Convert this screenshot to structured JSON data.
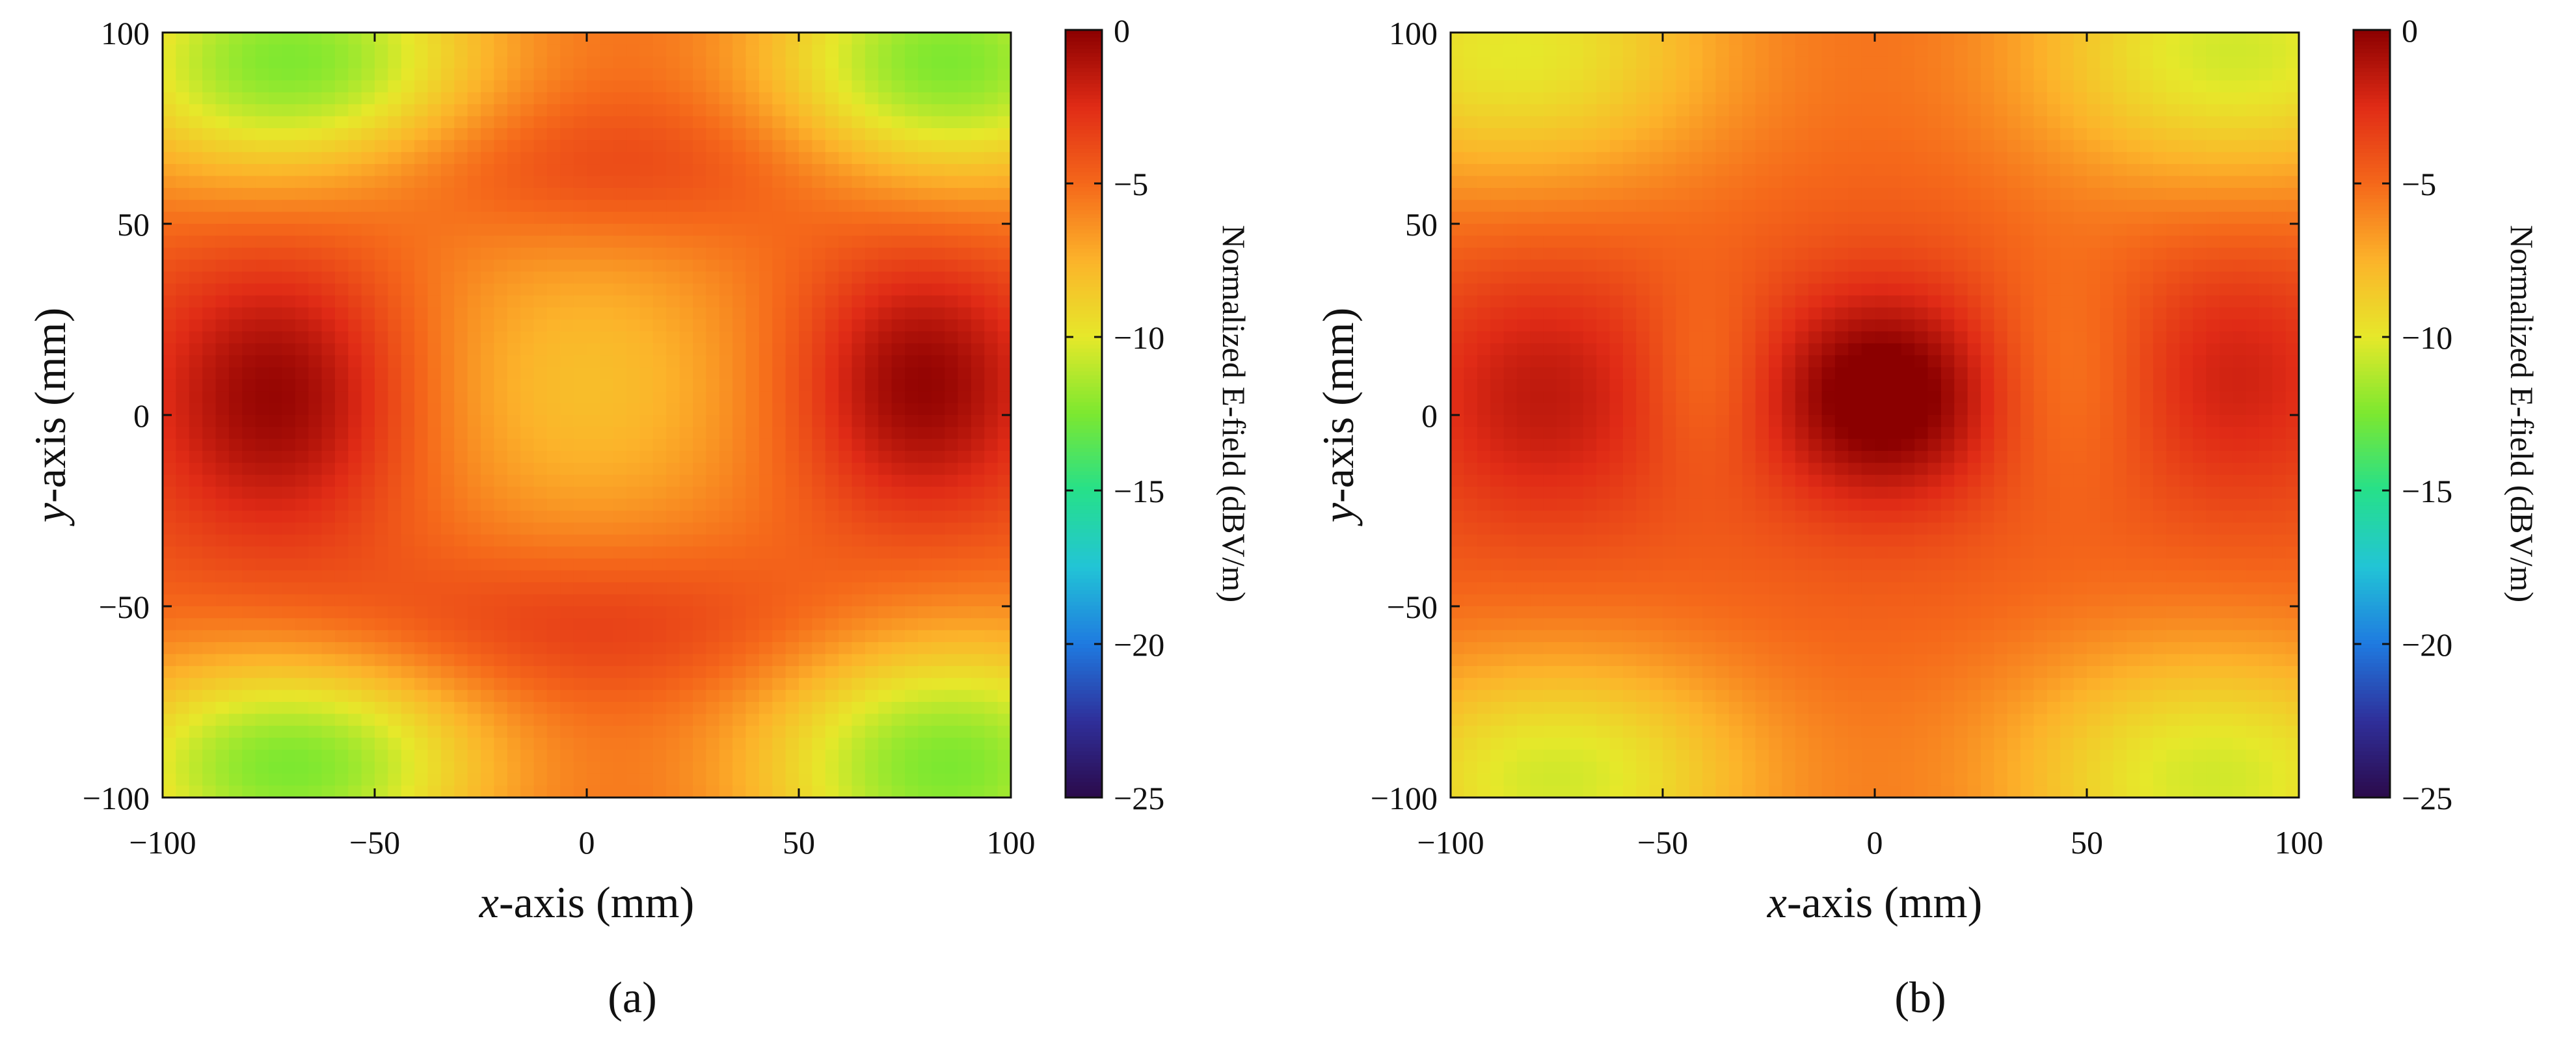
{
  "chart_data": [
    {
      "type": "heatmap",
      "panel_label": "(a)",
      "xlabel_italic": "x",
      "xlabel_rest": "-axis (mm)",
      "ylabel_italic": "y",
      "ylabel_rest": "-axis (mm)",
      "xlim": [
        -100,
        100
      ],
      "ylim": [
        -100,
        100
      ],
      "x_ticks": [
        "−100",
        "−50",
        "0",
        "50",
        "100"
      ],
      "y_ticks": [
        "−100",
        "−50",
        "0",
        "50",
        "100"
      ],
      "colorbar": {
        "label": "Normalized E-field (dBV/m)",
        "range": [
          -25,
          0
        ],
        "ticks": [
          "0",
          "−5",
          "−10",
          "−15",
          "−20",
          "−25"
        ],
        "colormap": [
          "#2b0a4a",
          "#2f2f9a",
          "#1f7ae0",
          "#22c4d6",
          "#26e08a",
          "#7ce830",
          "#e6e82a",
          "#fcb32a",
          "#f5681a",
          "#e02b16",
          "#8b0000"
        ]
      },
      "field": {
        "base": -4.5,
        "features": [
          {
            "x": -72,
            "y": 5,
            "amp": 4.5,
            "sx": 22,
            "sy": 26
          },
          {
            "x": 78,
            "y": 8,
            "amp": 4.5,
            "sx": 20,
            "sy": 24
          },
          {
            "x": 0,
            "y": 65,
            "amp": 2.0,
            "sx": 45,
            "sy": 14
          },
          {
            "x": 0,
            "y": -55,
            "amp": 2.0,
            "sx": 45,
            "sy": 14
          },
          {
            "x": 0,
            "y": 8,
            "amp": -3.5,
            "sx": 34,
            "sy": 34
          },
          {
            "x": -70,
            "y": 92,
            "amp": -8.0,
            "sx": 34,
            "sy": 24
          },
          {
            "x": 85,
            "y": 92,
            "amp": -8.0,
            "sx": 32,
            "sy": 24
          },
          {
            "x": -70,
            "y": -92,
            "amp": -8.0,
            "sx": 34,
            "sy": 22
          },
          {
            "x": 85,
            "y": -92,
            "amp": -8.0,
            "sx": 34,
            "sy": 26
          }
        ]
      }
    },
    {
      "type": "heatmap",
      "panel_label": "(b)",
      "xlabel_italic": "x",
      "xlabel_rest": "-axis (mm)",
      "ylabel_italic": "y",
      "ylabel_rest": "-axis (mm)",
      "xlim": [
        -100,
        100
      ],
      "ylim": [
        -100,
        100
      ],
      "x_ticks": [
        "−100",
        "−50",
        "0",
        "50",
        "100"
      ],
      "y_ticks": [
        "−100",
        "−50",
        "0",
        "50",
        "100"
      ],
      "colorbar": {
        "label": "Normalized E-field (dBV/m)",
        "range": [
          -25,
          0
        ],
        "ticks": [
          "0",
          "−5",
          "−10",
          "−15",
          "−20",
          "−25"
        ],
        "colormap": [
          "#2b0a4a",
          "#2f2f9a",
          "#1f7ae0",
          "#22c4d6",
          "#26e08a",
          "#7ce830",
          "#e6e82a",
          "#fcb32a",
          "#f5681a",
          "#e02b16",
          "#8b0000"
        ]
      },
      "field": {
        "base": -4.5,
        "features": [
          {
            "x": 2,
            "y": 5,
            "amp": 5.5,
            "sx": 20,
            "sy": 20
          },
          {
            "x": -78,
            "y": 5,
            "amp": 3.0,
            "sx": 22,
            "sy": 24
          },
          {
            "x": 85,
            "y": 10,
            "amp": 2.5,
            "sx": 20,
            "sy": 24
          },
          {
            "x": -40,
            "y": 10,
            "amp": -1.5,
            "sx": 10,
            "sy": 18
          },
          {
            "x": 45,
            "y": 10,
            "amp": -1.5,
            "sx": 14,
            "sy": 22
          },
          {
            "x": -85,
            "y": 95,
            "amp": -5.5,
            "sx": 38,
            "sy": 26
          },
          {
            "x": 85,
            "y": 95,
            "amp": -6.0,
            "sx": 38,
            "sy": 26
          },
          {
            "x": -75,
            "y": -95,
            "amp": -6.0,
            "sx": 36,
            "sy": 24
          },
          {
            "x": 80,
            "y": -95,
            "amp": -6.0,
            "sx": 38,
            "sy": 26
          }
        ]
      }
    }
  ]
}
